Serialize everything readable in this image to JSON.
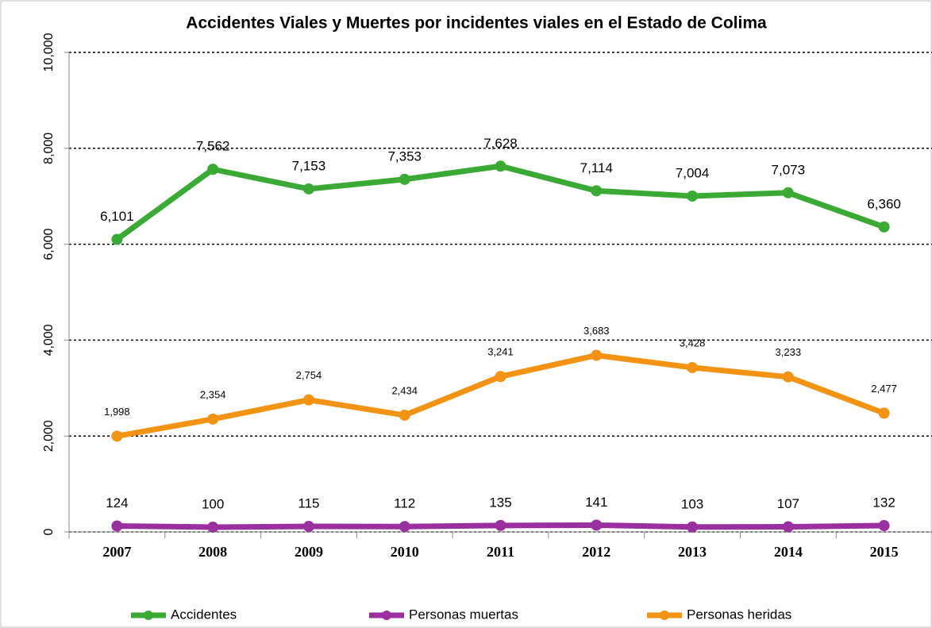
{
  "chart_data": {
    "type": "line",
    "title": "Accidentes Viales y Muertes por incidentes viales en el Estado de Colima",
    "categories": [
      "2007",
      "2008",
      "2009",
      "2010",
      "2011",
      "2012",
      "2013",
      "2014",
      "2015"
    ],
    "series": [
      {
        "name": "Accidentes",
        "color": "#3aaa35",
        "values": [
          6101,
          7562,
          7153,
          7353,
          7628,
          7114,
          7004,
          7073,
          6360
        ],
        "value_labels": [
          "6,101",
          "7,562",
          "7,153",
          "7,353",
          "7,628",
          "7,114",
          "7,004",
          "7,073",
          "6,360"
        ]
      },
      {
        "name": "Personas muertas",
        "color": "#9a2fa0",
        "values": [
          124,
          100,
          115,
          112,
          135,
          141,
          103,
          107,
          132
        ]
      },
      {
        "name": "Personas heridas",
        "color": "#f39314",
        "values": [
          1998,
          2354,
          2754,
          2434,
          3241,
          3683,
          3428,
          3233,
          2477
        ],
        "value_labels": [
          "1,998",
          "2,354",
          "2,754",
          "2,434",
          "3,241",
          "3,683",
          "3,428",
          "3,233",
          "2,477"
        ]
      }
    ],
    "ylim": [
      0,
      10000
    ],
    "yticks": [
      0,
      {
        "value": 2000,
        "label": "2,000"
      },
      {
        "value": 4000,
        "label": "4,000"
      },
      {
        "value": 6000,
        "label": "6,000"
      },
      {
        "value": 8000,
        "label": "8,000"
      },
      {
        "value": 10000,
        "label": "10,000"
      }
    ],
    "grid": true
  }
}
